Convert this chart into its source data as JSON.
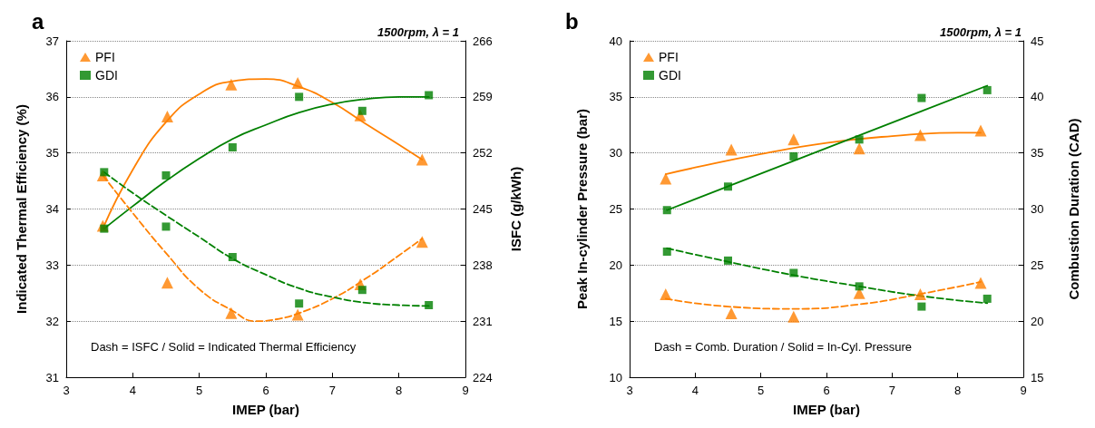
{
  "chart_data": [
    {
      "type": "scatter",
      "title": "a",
      "xlabel": "IMEP (bar)",
      "ylabel": "Indicated Thermal Efficiency (%)",
      "y2label": "ISFC (g/kWh)",
      "annotations": [
        "1500rpm, λ = 1",
        "Dash = ISFC / Solid = Indicated Thermal Efficiency"
      ],
      "xlim": [
        3,
        9
      ],
      "xticks": [
        3,
        4,
        5,
        6,
        7,
        8,
        9
      ],
      "ylim": [
        31,
        37
      ],
      "yticks": [
        31,
        32,
        33,
        34,
        35,
        36,
        37
      ],
      "y2lim": [
        224,
        266
      ],
      "y2ticks": [
        224,
        231,
        238,
        245,
        252,
        259,
        266
      ],
      "grid": "y",
      "legend": "top left",
      "series": [
        {
          "name": "PFI",
          "marker": "triangle",
          "color": "#ff8000",
          "x": [
            3.55,
            4.52,
            5.48,
            6.48,
            7.42,
            8.35
          ],
          "values": [
            33.7,
            35.65,
            36.22,
            36.25,
            35.67,
            34.88
          ]
        },
        {
          "name": "GDI",
          "marker": "square",
          "color": "#008000",
          "x": [
            3.57,
            4.5,
            5.5,
            6.5,
            7.45,
            8.45
          ],
          "values": [
            33.65,
            34.6,
            35.1,
            36.0,
            35.75,
            36.03
          ]
        },
        {
          "marker": "triangle",
          "color": "#ff8000",
          "axis": "y2",
          "x": [
            3.55,
            4.52,
            5.48,
            6.48,
            7.42,
            8.35
          ],
          "values": [
            249.2,
            235.8,
            232.0,
            231.8,
            235.6,
            240.9
          ]
        },
        {
          "marker": "square",
          "color": "#008000",
          "axis": "y2",
          "x": [
            3.57,
            4.5,
            5.5,
            6.5,
            7.45,
            8.45
          ],
          "values": [
            249.6,
            242.8,
            239.0,
            233.2,
            234.9,
            233.0
          ]
        },
        {
          "type": "line",
          "marker": "none",
          "line_style": "solid",
          "color": "#ff8000",
          "x": [
            3.55,
            4,
            4.5,
            5,
            5.5,
            6,
            6.5,
            7,
            7.5,
            8,
            8.35
          ],
          "values": [
            33.65,
            34.7,
            35.55,
            36.05,
            36.28,
            36.32,
            36.18,
            35.9,
            35.52,
            35.15,
            34.88
          ]
        },
        {
          "type": "line",
          "marker": "none",
          "line_style": "solid",
          "color": "#008000",
          "x": [
            3.57,
            4,
            4.5,
            5,
            5.5,
            6,
            6.5,
            7,
            7.5,
            8,
            8.45
          ],
          "values": [
            33.65,
            34.05,
            34.5,
            34.9,
            35.25,
            35.5,
            35.72,
            35.87,
            35.96,
            36.0,
            36.0
          ]
        },
        {
          "type": "line",
          "marker": "none",
          "line_style": "dashed",
          "color": "#ff8000",
          "axis": "y2",
          "x": [
            3.55,
            4,
            4.5,
            5,
            5.5,
            5.85,
            6.2,
            6.5,
            7,
            7.5,
            8,
            8.35
          ],
          "values": [
            249.2,
            244.5,
            239.5,
            235.0,
            232.3,
            231.0,
            231.3,
            232.0,
            233.8,
            236.3,
            239.2,
            241.3
          ]
        },
        {
          "type": "line",
          "marker": "none",
          "line_style": "dashed",
          "color": "#008000",
          "axis": "y2",
          "x": [
            3.57,
            4,
            4.5,
            5,
            5.5,
            6,
            6.5,
            7,
            7.5,
            8,
            8.45
          ],
          "values": [
            249.6,
            247.0,
            244.2,
            241.5,
            238.8,
            236.8,
            235.1,
            234.0,
            233.3,
            233.0,
            232.9
          ]
        }
      ]
    },
    {
      "type": "scatter",
      "title": "b",
      "xlabel": "IMEP (bar)",
      "ylabel": "Peak In-cylinder Pressure (bar)",
      "y2label": "Combustion Duration (CAD)",
      "annotations": [
        "1500rpm, λ = 1",
        "Dash = Comb. Duration / Solid = In-Cyl. Pressure"
      ],
      "xlim": [
        3,
        9
      ],
      "xticks": [
        3,
        4,
        5,
        6,
        7,
        8,
        9
      ],
      "ylim": [
        10,
        40
      ],
      "yticks": [
        10,
        15,
        20,
        25,
        30,
        35,
        40
      ],
      "y2lim": [
        15,
        45
      ],
      "y2ticks": [
        15,
        20,
        25,
        30,
        35,
        40,
        45
      ],
      "grid": "y",
      "legend": "top left",
      "series": [
        {
          "name": "PFI",
          "marker": "triangle",
          "color": "#ff8000",
          "x": [
            3.55,
            4.55,
            5.5,
            6.5,
            7.43,
            8.35
          ],
          "values": [
            27.7,
            30.3,
            31.2,
            30.4,
            31.6,
            32.0
          ]
        },
        {
          "name": "GDI",
          "marker": "square",
          "color": "#008000",
          "x": [
            3.57,
            4.5,
            5.5,
            6.5,
            7.45,
            8.45
          ],
          "values": [
            24.9,
            27.0,
            29.7,
            31.2,
            34.9,
            35.6
          ]
        },
        {
          "marker": "triangle",
          "color": "#ff8000",
          "axis": "y2",
          "x": [
            3.55,
            4.55,
            5.5,
            6.5,
            7.43,
            8.35
          ],
          "values": [
            22.4,
            20.7,
            20.4,
            22.5,
            22.4,
            23.4
          ]
        },
        {
          "marker": "square",
          "color": "#008000",
          "axis": "y2",
          "x": [
            3.57,
            4.5,
            5.5,
            6.5,
            7.45,
            8.45
          ],
          "values": [
            26.2,
            25.4,
            24.3,
            23.1,
            21.3,
            22.0
          ]
        },
        {
          "type": "line",
          "marker": "none",
          "line_style": "solid",
          "color": "#ff8000",
          "x": [
            3.55,
            4,
            5,
            6,
            7,
            8,
            8.35
          ],
          "values": [
            28.1,
            28.7,
            29.9,
            30.9,
            31.5,
            31.8,
            31.8
          ]
        },
        {
          "type": "line",
          "marker": "none",
          "line_style": "solid",
          "color": "#008000",
          "x": [
            3.57,
            8.45
          ],
          "values": [
            24.9,
            36.0
          ]
        },
        {
          "type": "line",
          "marker": "none",
          "line_style": "dashed",
          "color": "#ff8000",
          "axis": "y2",
          "x": [
            3.55,
            4.5,
            5.5,
            6.5,
            7.5,
            8.35
          ],
          "values": [
            22.0,
            21.3,
            21.1,
            21.5,
            22.5,
            23.5
          ]
        },
        {
          "type": "line",
          "marker": "none",
          "line_style": "dashed",
          "color": "#008000",
          "axis": "y2",
          "x": [
            3.57,
            4.5,
            5.5,
            6.5,
            7.5,
            8.45
          ],
          "values": [
            26.5,
            25.3,
            24.1,
            23.1,
            22.2,
            21.6
          ]
        }
      ]
    }
  ]
}
